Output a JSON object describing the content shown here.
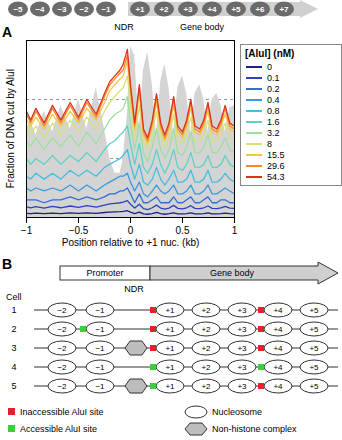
{
  "chart_data": {
    "type": "line",
    "panel": "A",
    "xlabel": "Position relative to +1 nuc. (kb)",
    "ylabel": "Fraction of DNA cut by AluI",
    "x": [
      -1,
      -0.96,
      -0.91,
      -0.83,
      -0.75,
      -0.67,
      -0.58,
      -0.5,
      -0.42,
      -0.33,
      -0.25,
      -0.2,
      -0.15,
      -0.1,
      -0.07,
      -0.03,
      0,
      0.04,
      0.085,
      0.125,
      0.165,
      0.21,
      0.25,
      0.29,
      0.33,
      0.37,
      0.415,
      0.455,
      0.5,
      0.54,
      0.58,
      0.62,
      0.665,
      0.705,
      0.745,
      0.785,
      0.83,
      0.87,
      0.91,
      0.955,
      1
    ],
    "xlim": [
      -1,
      1
    ],
    "xticks": [
      {
        "value": -1,
        "label": "−1"
      },
      {
        "value": -0.5,
        "label": "−0.5"
      },
      0,
      0.5,
      1
    ],
    "ylim": [
      0,
      0.6
    ],
    "yticks": [
      0.2,
      0.4
    ],
    "grid": true,
    "tick_labels": "x",
    "legend": "right",
    "legend_title": "[AluI] (nM)",
    "shading": {
      "color": "#d4d4d4",
      "values": [
        0.3,
        0.33,
        0.28,
        0.36,
        0.29,
        0.38,
        0.3,
        0.4,
        0.3,
        0.44,
        0.3,
        0.2,
        0.15,
        0.15,
        0.2,
        0.35,
        0.58,
        0.55,
        0.3,
        0.5,
        0.56,
        0.45,
        0.28,
        0.46,
        0.52,
        0.44,
        0.28,
        0.44,
        0.48,
        0.42,
        0.28,
        0.42,
        0.45,
        0.4,
        0.29,
        0.4,
        0.42,
        0.38,
        0.29,
        0.37,
        0.38
      ]
    },
    "nucleosome_track": {
      "upstream": [
        "−5",
        "−4",
        "−3",
        "−2",
        "−1"
      ],
      "downstream": [
        "+1",
        "+2",
        "+3",
        "+4",
        "+5",
        "+6",
        "+7"
      ],
      "ndr": "NDR",
      "gene_body": "Gene body"
    },
    "series": [
      {
        "name": "0",
        "color": "#1b1f8a",
        "values": [
          0.014,
          0.013,
          0.015,
          0.013,
          0.015,
          0.013,
          0.016,
          0.014,
          0.016,
          0.014,
          0.017,
          0.018,
          0.019,
          0.02,
          0.021,
          0.023,
          0.018,
          0.013,
          0.018,
          0.012,
          0.011,
          0.013,
          0.017,
          0.013,
          0.011,
          0.013,
          0.016,
          0.012,
          0.012,
          0.013,
          0.016,
          0.012,
          0.012,
          0.013,
          0.016,
          0.012,
          0.012,
          0.013,
          0.015,
          0.013,
          0.012
        ]
      },
      {
        "name": "0.1",
        "color": "#2a43c0",
        "values": [
          0.036,
          0.033,
          0.037,
          0.032,
          0.038,
          0.033,
          0.039,
          0.034,
          0.04,
          0.035,
          0.042,
          0.046,
          0.048,
          0.05,
          0.052,
          0.057,
          0.045,
          0.032,
          0.045,
          0.03,
          0.027,
          0.033,
          0.042,
          0.032,
          0.028,
          0.032,
          0.041,
          0.031,
          0.029,
          0.033,
          0.04,
          0.031,
          0.03,
          0.033,
          0.039,
          0.031,
          0.03,
          0.033,
          0.038,
          0.032,
          0.031
        ]
      },
      {
        "name": "0.2",
        "color": "#2f6fd6",
        "values": [
          0.06,
          0.06,
          0.06,
          0.05,
          0.06,
          0.06,
          0.07,
          0.06,
          0.07,
          0.06,
          0.07,
          0.08,
          0.08,
          0.09,
          0.09,
          0.1,
          0.08,
          0.05,
          0.08,
          0.05,
          0.05,
          0.06,
          0.07,
          0.05,
          0.05,
          0.05,
          0.07,
          0.05,
          0.05,
          0.06,
          0.07,
          0.05,
          0.05,
          0.06,
          0.07,
          0.05,
          0.05,
          0.06,
          0.06,
          0.05,
          0.05
        ]
      },
      {
        "name": "0.4",
        "color": "#3a9ae0",
        "values": [
          0.1,
          0.09,
          0.1,
          0.09,
          0.1,
          0.09,
          0.11,
          0.09,
          0.11,
          0.09,
          0.11,
          0.12,
          0.13,
          0.14,
          0.14,
          0.15,
          0.12,
          0.09,
          0.12,
          0.08,
          0.07,
          0.09,
          0.11,
          0.09,
          0.08,
          0.09,
          0.11,
          0.08,
          0.08,
          0.09,
          0.11,
          0.08,
          0.08,
          0.09,
          0.11,
          0.08,
          0.08,
          0.09,
          0.1,
          0.09,
          0.08
        ]
      },
      {
        "name": "0.8",
        "color": "#45bde0",
        "values": [
          0.14,
          0.13,
          0.15,
          0.13,
          0.15,
          0.13,
          0.16,
          0.14,
          0.16,
          0.14,
          0.17,
          0.18,
          0.19,
          0.2,
          0.21,
          0.23,
          0.18,
          0.13,
          0.18,
          0.12,
          0.11,
          0.13,
          0.17,
          0.13,
          0.11,
          0.13,
          0.16,
          0.12,
          0.12,
          0.13,
          0.16,
          0.12,
          0.12,
          0.13,
          0.16,
          0.12,
          0.12,
          0.13,
          0.15,
          0.13,
          0.12
        ]
      },
      {
        "name": "1.6",
        "color": "#5fd2c2",
        "values": [
          0.2,
          0.18,
          0.2,
          0.18,
          0.21,
          0.18,
          0.21,
          0.19,
          0.22,
          0.19,
          0.23,
          0.25,
          0.26,
          0.28,
          0.29,
          0.31,
          0.25,
          0.18,
          0.25,
          0.17,
          0.15,
          0.18,
          0.23,
          0.18,
          0.15,
          0.18,
          0.23,
          0.17,
          0.16,
          0.18,
          0.22,
          0.17,
          0.17,
          0.18,
          0.21,
          0.17,
          0.17,
          0.18,
          0.21,
          0.18,
          0.17
        ]
      },
      {
        "name": "3.2",
        "color": "#9fdf9f",
        "values": [
          0.26,
          0.24,
          0.27,
          0.23,
          0.27,
          0.24,
          0.28,
          0.24,
          0.29,
          0.25,
          0.3,
          0.33,
          0.35,
          0.36,
          0.37,
          0.41,
          0.32,
          0.23,
          0.32,
          0.22,
          0.19,
          0.24,
          0.3,
          0.23,
          0.2,
          0.23,
          0.3,
          0.22,
          0.21,
          0.24,
          0.29,
          0.22,
          0.22,
          0.24,
          0.28,
          0.22,
          0.22,
          0.24,
          0.27,
          0.23,
          0.22
        ]
      },
      {
        "name": "8",
        "color": "#d8e07a",
        "values": [
          0.31,
          0.28,
          0.31,
          0.27,
          0.32,
          0.28,
          0.33,
          0.29,
          0.34,
          0.3,
          0.36,
          0.39,
          0.41,
          0.43,
          0.44,
          0.48,
          0.38,
          0.27,
          0.38,
          0.26,
          0.23,
          0.28,
          0.36,
          0.27,
          0.24,
          0.27,
          0.35,
          0.26,
          0.25,
          0.28,
          0.34,
          0.26,
          0.26,
          0.28,
          0.33,
          0.26,
          0.26,
          0.28,
          0.32,
          0.27,
          0.26
        ]
      },
      {
        "name": "15.5",
        "color": "#f5c542",
        "values": [
          0.33,
          0.31,
          0.34,
          0.3,
          0.35,
          0.31,
          0.36,
          0.32,
          0.37,
          0.33,
          0.39,
          0.43,
          0.45,
          0.47,
          0.48,
          0.53,
          0.42,
          0.3,
          0.42,
          0.28,
          0.25,
          0.31,
          0.39,
          0.3,
          0.26,
          0.3,
          0.38,
          0.29,
          0.27,
          0.31,
          0.37,
          0.29,
          0.28,
          0.31,
          0.36,
          0.29,
          0.28,
          0.31,
          0.35,
          0.3,
          0.29
        ]
      },
      {
        "name": "29.6",
        "color": "#f58a2a",
        "values": [
          0.35,
          0.32,
          0.36,
          0.31,
          0.37,
          0.32,
          0.38,
          0.33,
          0.39,
          0.34,
          0.41,
          0.45,
          0.47,
          0.49,
          0.5,
          0.55,
          0.44,
          0.31,
          0.44,
          0.29,
          0.26,
          0.32,
          0.41,
          0.31,
          0.27,
          0.31,
          0.4,
          0.3,
          0.28,
          0.32,
          0.39,
          0.3,
          0.29,
          0.32,
          0.38,
          0.3,
          0.29,
          0.32,
          0.37,
          0.31,
          0.3
        ]
      },
      {
        "name": "54.3",
        "color": "#e0301e",
        "values": [
          0.36,
          0.33,
          0.37,
          0.32,
          0.38,
          0.33,
          0.39,
          0.34,
          0.4,
          0.35,
          0.42,
          0.46,
          0.48,
          0.5,
          0.52,
          0.57,
          0.45,
          0.32,
          0.45,
          0.3,
          0.27,
          0.33,
          0.42,
          0.32,
          0.28,
          0.32,
          0.41,
          0.31,
          0.29,
          0.33,
          0.4,
          0.31,
          0.3,
          0.33,
          0.39,
          0.31,
          0.3,
          0.33,
          0.38,
          0.32,
          0.31
        ]
      }
    ]
  },
  "diagram": {
    "panel": "B",
    "promoter": "Promoter",
    "ndr": "NDR",
    "gene_body": "Gene body",
    "cell_header": "Cell",
    "upstream": [
      "−2",
      "−1"
    ],
    "downstream": [
      "+1",
      "+2",
      "+3",
      "+4",
      "+5"
    ],
    "cells": [
      {
        "label": "1",
        "complex": false,
        "sites": [
          {
            "before": "+1",
            "accessible": false
          },
          {
            "before": "+4",
            "accessible": false
          }
        ]
      },
      {
        "label": "2",
        "complex": false,
        "sites": [
          {
            "before": "−1",
            "accessible": true
          },
          {
            "before": "+1",
            "accessible": false
          },
          {
            "before": "+4",
            "accessible": false
          }
        ]
      },
      {
        "label": "3",
        "complex": true,
        "sites": [
          {
            "before": "+1",
            "accessible": false
          },
          {
            "before": "+4",
            "accessible": false
          }
        ]
      },
      {
        "label": "4",
        "complex": false,
        "sites": [
          {
            "before": "+1",
            "accessible": true
          },
          {
            "before": "+4",
            "accessible": true
          }
        ]
      },
      {
        "label": "5",
        "complex": true,
        "sites": [
          {
            "before": "+1",
            "accessible": true
          },
          {
            "before": "+4",
            "accessible": false
          }
        ]
      }
    ],
    "legend": {
      "inaccessible": {
        "label": "Inaccessible AluI site",
        "color": "#e8202a"
      },
      "accessible": {
        "label": "Accessible AluI site",
        "color": "#39d03a"
      },
      "nucleosome": "Nucleosome",
      "complex": "Non-histone complex"
    }
  }
}
